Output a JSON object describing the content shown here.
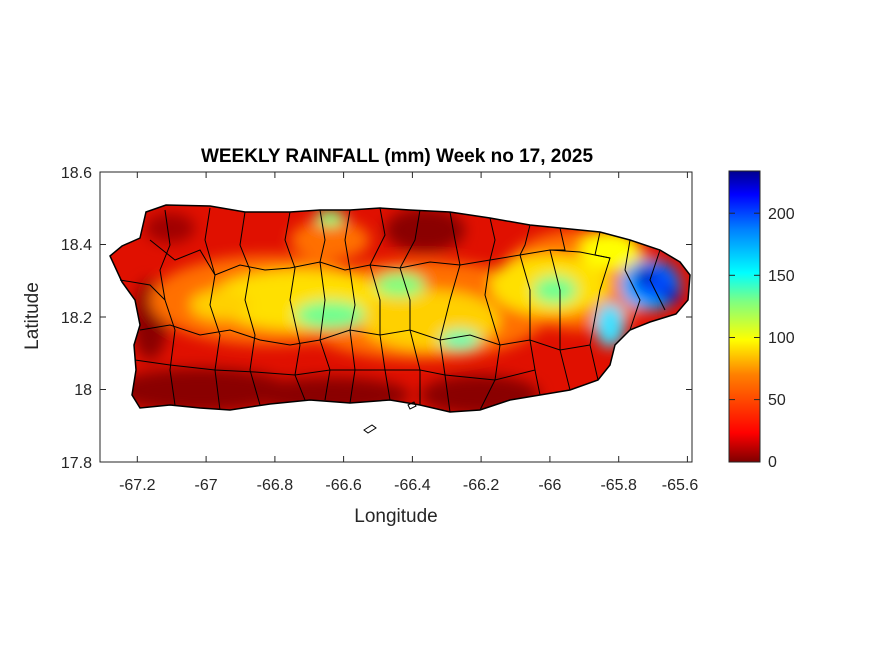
{
  "map": {
    "title": "WEEKLY RAINFALL (mm) Week no 17, 2025",
    "xlabel": "Longitude",
    "ylabel": "Latitude",
    "x_ticks": [
      "-67.2",
      "-67",
      "-66.8",
      "-66.6",
      "-66.4",
      "-66.2",
      "-66",
      "-65.8",
      "-65.6"
    ],
    "y_ticks": [
      "18.6",
      "18.4",
      "18.2",
      "18"
    ],
    "y_bottom_tick": "17.8",
    "colorbar_ticks": [
      "200",
      "150",
      "100",
      "50",
      "0"
    ],
    "colorbar_range": [
      0,
      230
    ],
    "colormap": [
      "#7f0000",
      "#ff0000",
      "#ff8000",
      "#ffff00",
      "#80ff80",
      "#00ffff",
      "#0080ff",
      "#0000ff",
      "#00008f"
    ],
    "colors": {
      "border": "#000000",
      "background": "#ffffff"
    }
  }
}
